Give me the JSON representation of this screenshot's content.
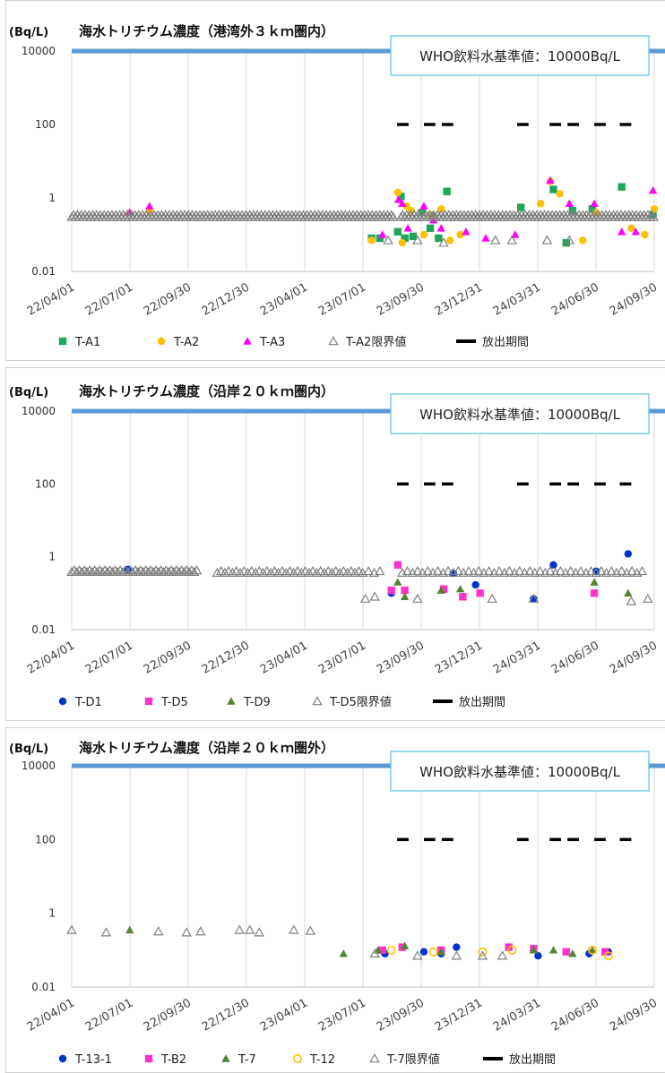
{
  "unit": "(Bq/L)",
  "who_label": "WHO飲料水基準値：10000Bq/L",
  "colors": {
    "who_line": "#5b9bd5",
    "who_box": "#5bc0de",
    "grid": "#d9d9d9",
    "release": "#000000",
    "limit": "#808080"
  },
  "chart_data": [
    {
      "type": "scatter",
      "title": "海水トリチウム濃度（港湾外３ｋｍ圏内）",
      "y_scale": "log",
      "ylim": [
        0.01,
        10000
      ],
      "y_ticks": [
        "10000",
        "100",
        "1",
        "0.01"
      ],
      "x_ticks": [
        "22/04/01",
        "22/07/01",
        "22/09/30",
        "22/12/30",
        "23/04/01",
        "23/07/01",
        "23/09/30",
        "23/12/31",
        "24/03/31",
        "24/06/30",
        "24/09/30"
      ],
      "x_range": [
        "2022-04-01",
        "2024-09-30"
      ],
      "legend_position": "bottom",
      "grid": "vertical",
      "release_label": "放出期間",
      "release_y": 100,
      "release_periods": [
        [
          "2023-08-24",
          "2023-09-11"
        ],
        [
          "2023-10-05",
          "2023-10-23"
        ],
        [
          "2023-11-02",
          "2023-11-20"
        ],
        [
          "2024-02-28",
          "2024-03-17"
        ],
        [
          "2024-04-19",
          "2024-05-07"
        ],
        [
          "2024-05-17",
          "2024-06-04"
        ],
        [
          "2024-06-28",
          "2024-07-16"
        ],
        [
          "2024-08-07",
          "2024-08-25"
        ]
      ],
      "series": [
        {
          "name": "T-A1",
          "marker": "square",
          "color": "#20a65a",
          "points": [
            [
              "2023-07-15",
              0.08
            ],
            [
              "2023-07-28",
              0.08
            ],
            [
              "2023-08-25",
              0.12
            ],
            [
              "2023-08-30",
              1.1
            ],
            [
              "2023-09-05",
              0.08
            ],
            [
              "2023-09-18",
              0.09
            ],
            [
              "2023-10-02",
              0.4
            ],
            [
              "2023-10-15",
              0.15
            ],
            [
              "2023-10-28",
              0.08
            ],
            [
              "2023-11-10",
              1.5
            ],
            [
              "2024-03-05",
              0.55
            ],
            [
              "2024-04-25",
              1.7
            ],
            [
              "2024-05-15",
              0.06
            ],
            [
              "2024-05-25",
              0.45
            ],
            [
              "2024-06-25",
              0.5
            ],
            [
              "2024-08-10",
              2.0
            ],
            [
              "2024-09-28",
              0.35
            ]
          ]
        },
        {
          "name": "T-A2",
          "marker": "circle",
          "color": "#ffc000",
          "points": [
            [
              "2022-07-01",
              0.38
            ],
            [
              "2022-08-01",
              0.45
            ],
            [
              "2023-07-15",
              0.07
            ],
            [
              "2023-08-25",
              1.4
            ],
            [
              "2023-09-01",
              0.06
            ],
            [
              "2023-09-08",
              0.6
            ],
            [
              "2023-09-15",
              0.45
            ],
            [
              "2023-10-05",
              0.1
            ],
            [
              "2023-10-15",
              0.35
            ],
            [
              "2023-11-01",
              0.5
            ],
            [
              "2023-11-15",
              0.07
            ],
            [
              "2023-12-01",
              0.1
            ],
            [
              "2024-04-05",
              0.7
            ],
            [
              "2024-04-20",
              2.8
            ],
            [
              "2024-05-05",
              1.3
            ],
            [
              "2024-06-10",
              0.07
            ],
            [
              "2024-07-01",
              0.4
            ],
            [
              "2024-08-25",
              0.15
            ],
            [
              "2024-09-15",
              0.1
            ],
            [
              "2024-09-30",
              0.5
            ]
          ]
        },
        {
          "name": "T-A3",
          "marker": "triangle",
          "color": "#ff00ff",
          "points": [
            [
              "2022-07-01",
              0.4
            ],
            [
              "2022-08-01",
              0.6
            ],
            [
              "2023-08-01",
              0.1
            ],
            [
              "2023-08-26",
              0.9
            ],
            [
              "2023-09-01",
              0.7
            ],
            [
              "2023-09-10",
              0.15
            ],
            [
              "2023-10-05",
              0.6
            ],
            [
              "2023-10-20",
              0.25
            ],
            [
              "2023-11-01",
              0.15
            ],
            [
              "2023-12-10",
              0.12
            ],
            [
              "2024-01-10",
              0.08
            ],
            [
              "2024-02-25",
              0.1
            ],
            [
              "2024-04-20",
              3.0
            ],
            [
              "2024-05-20",
              0.7
            ],
            [
              "2024-06-28",
              0.7
            ],
            [
              "2024-08-10",
              0.12
            ],
            [
              "2024-09-01",
              0.12
            ],
            [
              "2024-09-28",
              1.6
            ]
          ]
        },
        {
          "name": "T-A2限界値",
          "marker": "open-triangle",
          "color": "#808080",
          "points": "dense",
          "dense": [
            [
              "2022-04-01",
              "2023-08-20",
              0.3,
              3
            ],
            [
              "2023-08-30",
              "2024-09-30",
              0.3,
              3
            ]
          ],
          "extra": [
            [
              "2023-08-10",
              0.07
            ],
            [
              "2023-09-25",
              0.07
            ],
            [
              "2023-10-20",
              0.3
            ],
            [
              "2023-11-05",
              0.06
            ],
            [
              "2024-01-25",
              0.07
            ],
            [
              "2024-02-20",
              0.07
            ],
            [
              "2024-04-15",
              0.07
            ],
            [
              "2024-05-20",
              0.07
            ]
          ]
        },
        {
          "name": "放出期間",
          "marker": "line",
          "color": "#000000"
        }
      ]
    },
    {
      "type": "scatter",
      "title": "海水トリチウム濃度（沿岸２０ｋｍ圏内）",
      "y_scale": "log",
      "ylim": [
        0.01,
        10000
      ],
      "y_ticks": [
        "10000",
        "100",
        "1",
        "0.01"
      ],
      "x_ticks": [
        "22/04/01",
        "22/07/01",
        "22/09/30",
        "22/12/30",
        "23/04/01",
        "23/07/01",
        "23/09/30",
        "23/12/31",
        "24/03/31",
        "24/06/30",
        "24/09/30"
      ],
      "x_range": [
        "2022-04-01",
        "2024-09-30"
      ],
      "legend_position": "bottom",
      "grid": "vertical",
      "release_label": "放出期間",
      "release_y": 100,
      "release_periods": [
        [
          "2023-08-24",
          "2023-09-11"
        ],
        [
          "2023-10-05",
          "2023-10-23"
        ],
        [
          "2023-11-02",
          "2023-11-20"
        ],
        [
          "2024-02-28",
          "2024-03-17"
        ],
        [
          "2024-04-19",
          "2024-05-07"
        ],
        [
          "2024-05-17",
          "2024-06-04"
        ],
        [
          "2024-06-28",
          "2024-07-16"
        ],
        [
          "2024-08-07",
          "2024-08-25"
        ]
      ],
      "series": [
        {
          "name": "T-D1",
          "marker": "circle",
          "color": "#0033cc",
          "points": [
            [
              "2022-06-28",
              0.45
            ],
            [
              "2023-08-15",
              0.1
            ],
            [
              "2023-11-20",
              0.35
            ],
            [
              "2023-12-05",
              0.08
            ],
            [
              "2023-12-25",
              0.17
            ],
            [
              "2024-03-25",
              0.07
            ],
            [
              "2024-04-25",
              0.6
            ],
            [
              "2024-07-01",
              0.4
            ],
            [
              "2024-08-20",
              1.2
            ]
          ]
        },
        {
          "name": "T-D5",
          "marker": "square",
          "color": "#ff33cc",
          "points": [
            [
              "2023-08-15",
              0.12
            ],
            [
              "2023-08-25",
              0.6
            ],
            [
              "2023-09-05",
              0.12
            ],
            [
              "2023-11-05",
              0.13
            ],
            [
              "2023-12-05",
              0.08
            ],
            [
              "2024-01-01",
              0.1
            ],
            [
              "2024-06-28",
              0.1
            ]
          ]
        },
        {
          "name": "T-D9",
          "marker": "triangle",
          "color": "#548235",
          "points": [
            [
              "2023-08-25",
              0.2
            ],
            [
              "2023-09-05",
              0.08
            ],
            [
              "2023-11-01",
              0.12
            ],
            [
              "2023-12-01",
              0.13
            ],
            [
              "2024-06-28",
              0.2
            ],
            [
              "2024-08-20",
              0.1
            ]
          ]
        },
        {
          "name": "T-D5限界値",
          "marker": "open-triangle",
          "color": "#808080",
          "points": "dense",
          "dense": [
            [
              "2022-04-01",
              "2022-10-15",
              0.38,
              4
            ],
            [
              "2022-11-15",
              "2023-06-30",
              0.36,
              6
            ],
            [
              "2023-07-01",
              "2023-08-05",
              0.36,
              9
            ],
            [
              "2023-09-01",
              "2024-09-15",
              0.36,
              8
            ]
          ],
          "extra": [
            [
              "2023-07-05",
              0.07
            ],
            [
              "2023-07-20",
              0.08
            ],
            [
              "2023-09-25",
              0.07
            ],
            [
              "2024-01-20",
              0.07
            ],
            [
              "2024-03-25",
              0.07
            ],
            [
              "2024-08-25",
              0.06
            ],
            [
              "2024-09-20",
              0.07
            ]
          ]
        },
        {
          "name": "放出期間",
          "marker": "line",
          "color": "#000000"
        }
      ]
    },
    {
      "type": "scatter",
      "title": "海水トリチウム濃度（沿岸２０ｋｍ圏外）",
      "y_scale": "log",
      "ylim": [
        0.01,
        10000
      ],
      "y_ticks": [
        "10000",
        "100",
        "1",
        "0.01"
      ],
      "x_ticks": [
        "22/04/01",
        "22/07/01",
        "22/09/30",
        "22/12/30",
        "23/04/01",
        "23/07/01",
        "23/09/30",
        "23/12/31",
        "24/03/31",
        "24/06/30",
        "24/09/30"
      ],
      "x_range": [
        "2022-04-01",
        "2024-09-30"
      ],
      "legend_position": "bottom",
      "grid": "vertical",
      "release_label": "放出期間",
      "release_y": 100,
      "release_periods": [
        [
          "2023-08-24",
          "2023-09-11"
        ],
        [
          "2023-10-05",
          "2023-10-23"
        ],
        [
          "2023-11-02",
          "2023-11-20"
        ],
        [
          "2024-02-28",
          "2024-03-17"
        ],
        [
          "2024-04-19",
          "2024-05-07"
        ],
        [
          "2024-05-17",
          "2024-06-04"
        ],
        [
          "2024-06-28",
          "2024-07-16"
        ],
        [
          "2024-08-07",
          "2024-08-25"
        ]
      ],
      "series": [
        {
          "name": "T-13-1",
          "marker": "circle",
          "color": "#0033cc",
          "points": [
            [
              "2023-08-05",
              0.08
            ],
            [
              "2023-09-01",
              0.12
            ],
            [
              "2023-10-05",
              0.09
            ],
            [
              "2023-11-01",
              0.08
            ],
            [
              "2023-11-25",
              0.12
            ],
            [
              "2024-04-01",
              0.07
            ],
            [
              "2024-06-20",
              0.08
            ],
            [
              "2024-07-20",
              0.09
            ]
          ]
        },
        {
          "name": "T-B2",
          "marker": "square",
          "color": "#ff33cc",
          "points": [
            [
              "2023-08-01",
              0.1
            ],
            [
              "2023-09-01",
              0.12
            ],
            [
              "2023-11-01",
              0.1
            ],
            [
              "2024-02-15",
              0.12
            ],
            [
              "2024-03-25",
              0.11
            ],
            [
              "2024-05-15",
              0.09
            ],
            [
              "2024-07-15",
              0.09
            ]
          ]
        },
        {
          "name": "T-7",
          "marker": "triangle",
          "color": "#548235",
          "points": [
            [
              "2022-07-01",
              0.35
            ],
            [
              "2023-06-01",
              0.08
            ],
            [
              "2023-07-25",
              0.1
            ],
            [
              "2023-09-05",
              0.13
            ],
            [
              "2023-11-01",
              0.09
            ],
            [
              "2024-03-25",
              0.1
            ],
            [
              "2024-04-25",
              0.1
            ],
            [
              "2024-05-25",
              0.08
            ],
            [
              "2024-06-25",
              0.1
            ]
          ]
        },
        {
          "name": "T-12",
          "marker": "open-circle",
          "color": "#ffc000",
          "points": [
            [
              "2023-08-15",
              0.1
            ],
            [
              "2023-10-20",
              0.09
            ],
            [
              "2024-01-05",
              0.09
            ],
            [
              "2024-02-20",
              0.1
            ],
            [
              "2024-06-25",
              0.1
            ],
            [
              "2024-07-20",
              0.07
            ]
          ]
        },
        {
          "name": "T-7限界値",
          "marker": "open-triangle",
          "color": "#808080",
          "points": [
            [
              "2022-04-01",
              0.35
            ],
            [
              "2022-05-25",
              0.3
            ],
            [
              "2022-08-15",
              0.32
            ],
            [
              "2022-09-28",
              0.3
            ],
            [
              "2022-10-20",
              0.32
            ],
            [
              "2022-12-20",
              0.35
            ],
            [
              "2023-01-05",
              0.35
            ],
            [
              "2023-01-20",
              0.3
            ],
            [
              "2023-03-15",
              0.35
            ],
            [
              "2023-04-10",
              0.33
            ],
            [
              "2023-07-20",
              0.08
            ],
            [
              "2023-09-25",
              0.07
            ],
            [
              "2023-11-25",
              0.07
            ],
            [
              "2024-01-05",
              0.07
            ],
            [
              "2024-02-05",
              0.07
            ]
          ]
        },
        {
          "name": "放出期間",
          "marker": "line",
          "color": "#000000"
        }
      ]
    }
  ]
}
